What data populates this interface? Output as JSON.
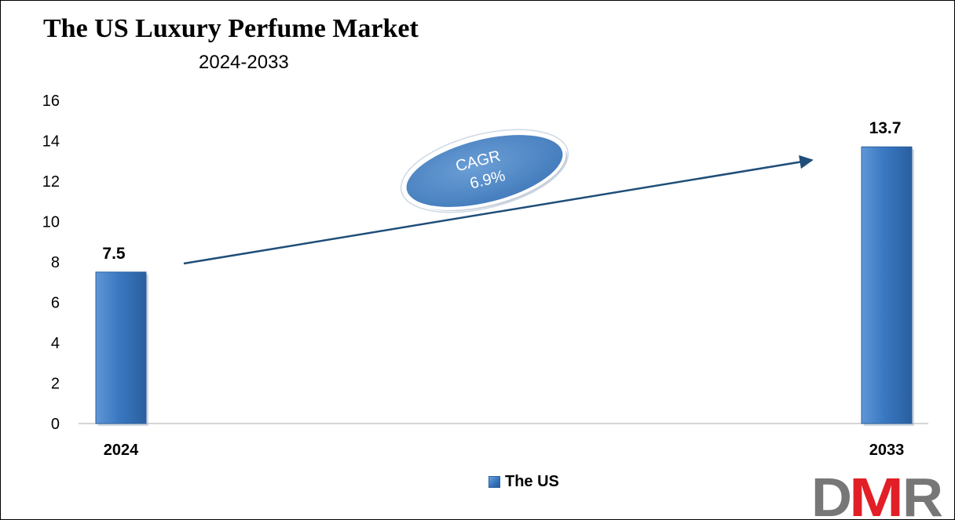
{
  "title": "The US Luxury Perfume Market",
  "subtitle": "2024-2033",
  "chart_data": {
    "type": "bar",
    "categories": [
      "2024",
      "2033"
    ],
    "series": [
      {
        "name": "The US",
        "values": [
          7.5,
          13.7
        ]
      }
    ],
    "data_labels": [
      "7.5",
      "13.7"
    ],
    "ylim": [
      0,
      16
    ],
    "yticks": [
      0,
      2,
      4,
      6,
      8,
      10,
      12,
      14,
      16
    ],
    "grid": false,
    "legend_position": "bottom",
    "annotation": {
      "line1": "CAGR",
      "line2": "6.9%"
    },
    "bar_color": "#3a78c2"
  },
  "legend": {
    "label": "The US"
  },
  "logo": {
    "text": "DMR",
    "color_d": "#777777",
    "color_m": "#e21f26",
    "color_r": "#777777"
  }
}
